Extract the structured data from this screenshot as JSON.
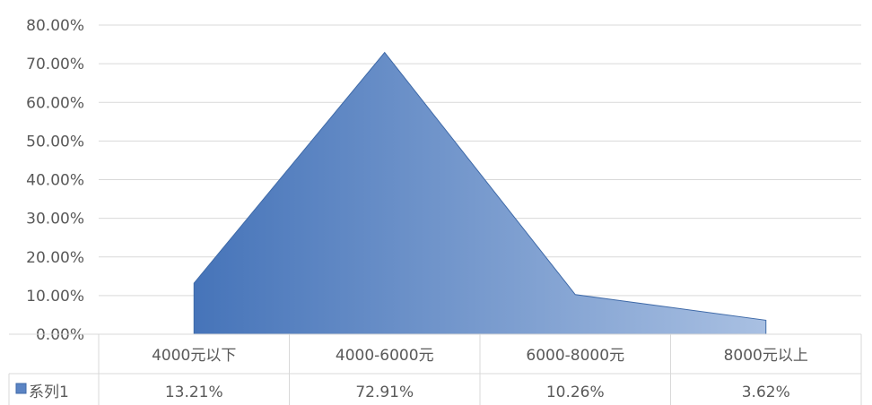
{
  "chart_data": {
    "type": "area",
    "categories": [
      "4000元以下",
      "4000-6000元",
      "6000-8000元",
      "8000元以上"
    ],
    "series": [
      {
        "name": "系列1",
        "values": [
          13.21,
          72.91,
          10.26,
          3.62
        ],
        "labels": [
          "13.21%",
          "72.91%",
          "10.26%",
          "3.62%"
        ]
      }
    ],
    "yticks": [
      "0.00%",
      "10.00%",
      "20.00%",
      "30.00%",
      "40.00%",
      "50.00%",
      "60.00%",
      "70.00%",
      "80.00%"
    ],
    "ylim": [
      0,
      80
    ],
    "grid": true,
    "data_table": true,
    "legend_position": "data-table-left",
    "colors": {
      "fill_dark": "#4472c4",
      "fill_light": "#b4c7e7",
      "grid": "#d9d9d9",
      "text": "#595959"
    }
  }
}
